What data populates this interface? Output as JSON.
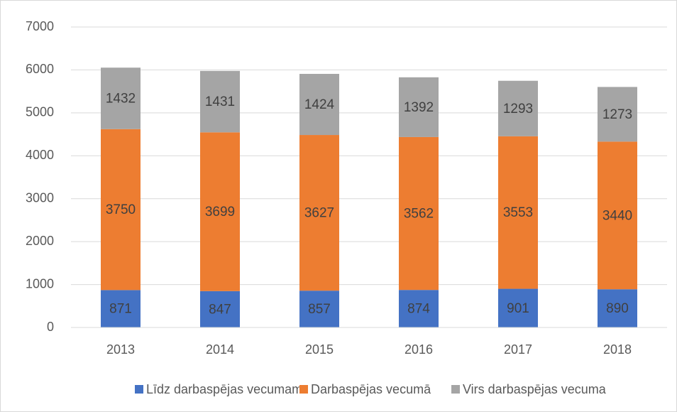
{
  "chart_data": {
    "type": "stacked_bar",
    "categories": [
      "2013",
      "2014",
      "2015",
      "2016",
      "2017",
      "2018"
    ],
    "series": [
      {
        "name": "Līdz darbaspējas vecumam",
        "color": "#4472c4",
        "values": [
          871,
          847,
          857,
          874,
          901,
          890
        ]
      },
      {
        "name": "Darbaspējas vecumā",
        "color": "#ed7d31",
        "values": [
          3750,
          3699,
          3627,
          3562,
          3553,
          3440
        ]
      },
      {
        "name": "Virs darbaspējas vecuma",
        "color": "#a5a5a5",
        "values": [
          1432,
          1431,
          1424,
          1392,
          1293,
          1273
        ]
      }
    ],
    "ylim": [
      0,
      7000
    ],
    "yticks": [
      0,
      1000,
      2000,
      3000,
      4000,
      5000,
      6000,
      7000
    ],
    "grid": true,
    "legend": "bottom"
  }
}
